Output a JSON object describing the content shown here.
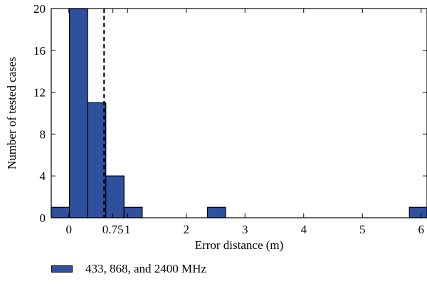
{
  "chart_data": {
    "type": "bar",
    "xlabel": "Error distance (m)",
    "ylabel": "Number of tested cases",
    "xlim": [
      -0.3,
      6.1
    ],
    "ylim": [
      0,
      20
    ],
    "x_ticks": [
      0,
      0.75,
      1,
      2,
      3,
      4,
      5,
      6
    ],
    "x_tick_labels": [
      "0",
      "0.75",
      "1",
      "2",
      "3",
      "4",
      "5",
      "6"
    ],
    "y_ticks": [
      0,
      4,
      8,
      12,
      16,
      20
    ],
    "y_tick_labels": [
      "0",
      "4",
      "8",
      "12",
      "16",
      "20"
    ],
    "bin_width": 0.31,
    "series": [
      {
        "name": "433, 868, and 2400 MHz",
        "color": "#2f4f9f",
        "bins": [
          {
            "start": -0.3,
            "value": 1
          },
          {
            "start": 0.01,
            "value": 20
          },
          {
            "start": 0.32,
            "value": 11
          },
          {
            "start": 0.63,
            "value": 4
          },
          {
            "start": 0.94,
            "value": 1
          },
          {
            "start": 2.36,
            "value": 1
          },
          {
            "start": 5.8,
            "value": 1
          }
        ]
      }
    ],
    "reference_line": {
      "x": 0.6,
      "style": "dashed"
    },
    "legend": {
      "position": "bottom-left"
    }
  }
}
